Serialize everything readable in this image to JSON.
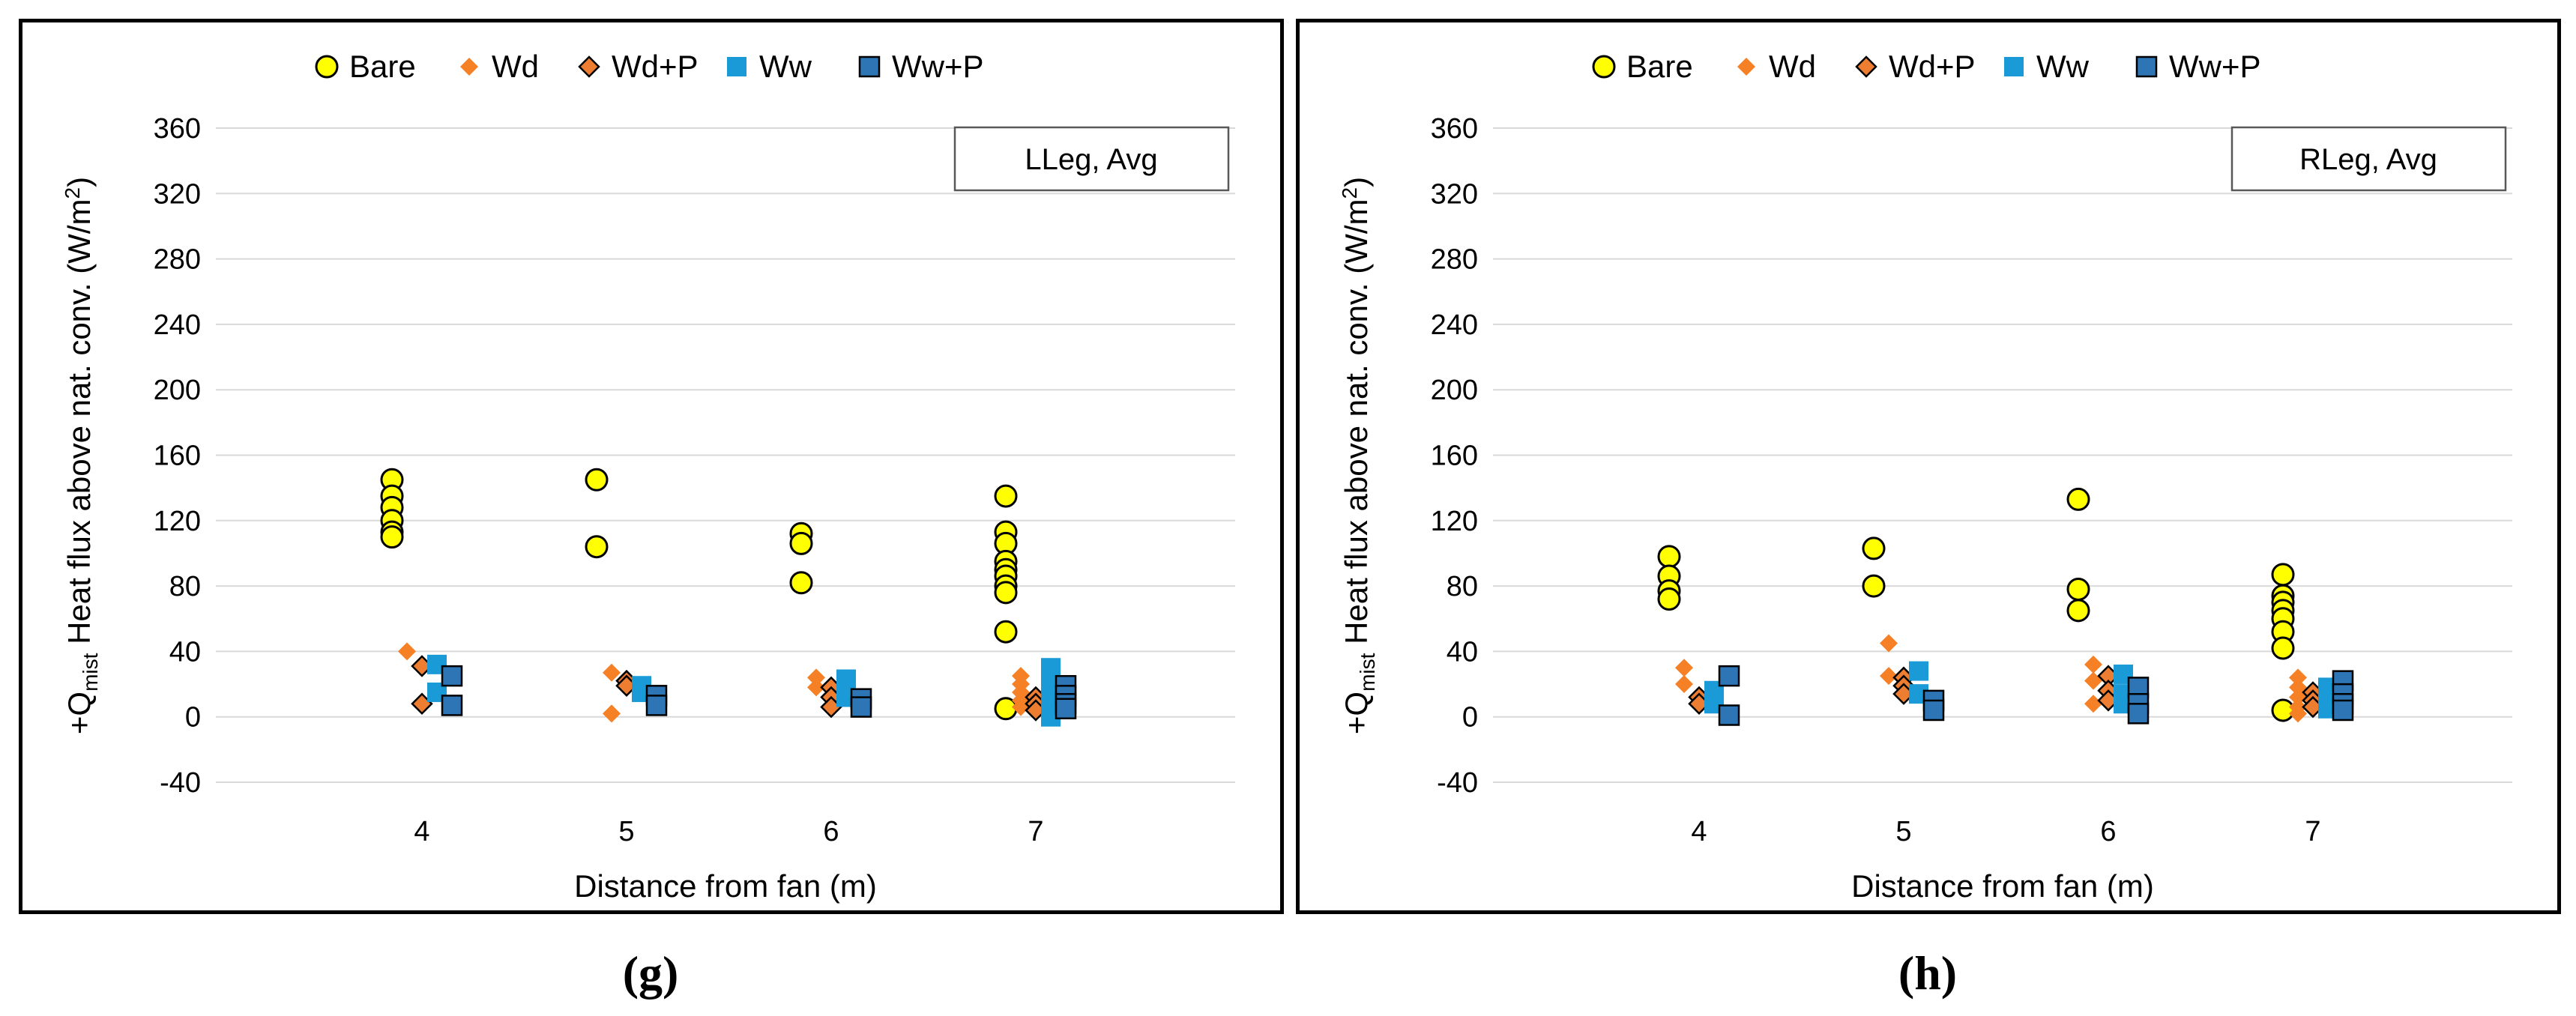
{
  "colors": {
    "Bare": "#ffff00",
    "Wd": "#f58025",
    "Wd+P": "#ed7d31",
    "Ww": "#1a9ad6",
    "Ww+P": "#2e75b6"
  },
  "chart_data": [
    {
      "type": "scatter",
      "panel_label": "(g)",
      "box_label": "LLeg, Avg",
      "xlabel": "Distance from fan (m)",
      "ylabel_prefix": "+Q",
      "ylabel_sub": "mist",
      "ylabel_main": " Heat flux above nat. conv. (W/m",
      "ylabel_sup": "2",
      "ylabel_end": ")",
      "ylim": [
        -40,
        360
      ],
      "yticks": [
        -40,
        0,
        40,
        80,
        120,
        160,
        200,
        240,
        280,
        320,
        360
      ],
      "categories": [
        "4",
        "5",
        "6",
        "7"
      ],
      "series": [
        {
          "name": "Bare",
          "points": [
            [
              4,
              145
            ],
            [
              4,
              135
            ],
            [
              4,
              128
            ],
            [
              4,
              120
            ],
            [
              4,
              113
            ],
            [
              4,
              110
            ],
            [
              5,
              145
            ],
            [
              5,
              104
            ],
            [
              6,
              112
            ],
            [
              6,
              106
            ],
            [
              6,
              82
            ],
            [
              7,
              135
            ],
            [
              7,
              113
            ],
            [
              7,
              106
            ],
            [
              7,
              95
            ],
            [
              7,
              90
            ],
            [
              7,
              86
            ],
            [
              7,
              80
            ],
            [
              7,
              76
            ],
            [
              7,
              52
            ],
            [
              7,
              5
            ]
          ]
        },
        {
          "name": "Wd",
          "points": [
            [
              4,
              40
            ],
            [
              5,
              27
            ],
            [
              5,
              2
            ],
            [
              6,
              24
            ],
            [
              6,
              18
            ],
            [
              7,
              25
            ],
            [
              7,
              20
            ],
            [
              7,
              15
            ],
            [
              7,
              10
            ],
            [
              7,
              6
            ]
          ]
        },
        {
          "name": "Wd+P",
          "points": [
            [
              4,
              31
            ],
            [
              4,
              8
            ],
            [
              5,
              22
            ],
            [
              5,
              19
            ],
            [
              6,
              18
            ],
            [
              6,
              12
            ],
            [
              6,
              6
            ],
            [
              7,
              12
            ],
            [
              7,
              8
            ],
            [
              7,
              4
            ]
          ]
        },
        {
          "name": "Ww",
          "points": [
            [
              4,
              32
            ],
            [
              4,
              15
            ],
            [
              5,
              19
            ],
            [
              5,
              15
            ],
            [
              6,
              23
            ],
            [
              6,
              16
            ],
            [
              6,
              12
            ],
            [
              7,
              30
            ],
            [
              7,
              22
            ],
            [
              7,
              16
            ],
            [
              7,
              10
            ],
            [
              7,
              5
            ],
            [
              7,
              0
            ]
          ]
        },
        {
          "name": "Ww+P",
          "points": [
            [
              4,
              25
            ],
            [
              4,
              7
            ],
            [
              5,
              13
            ],
            [
              5,
              7
            ],
            [
              6,
              11
            ],
            [
              6,
              6
            ],
            [
              7,
              19
            ],
            [
              7,
              13
            ],
            [
              7,
              8
            ],
            [
              7,
              5
            ]
          ]
        }
      ]
    },
    {
      "type": "scatter",
      "panel_label": "(h)",
      "box_label": "RLeg, Avg",
      "xlabel": "Distance from fan (m)",
      "ylabel_prefix": "+Q",
      "ylabel_sub": "mist",
      "ylabel_main": " Heat flux above nat. conv. (W/m",
      "ylabel_sup": "2",
      "ylabel_end": ")",
      "ylim": [
        -40,
        360
      ],
      "yticks": [
        -40,
        0,
        40,
        80,
        120,
        160,
        200,
        240,
        280,
        320,
        360
      ],
      "categories": [
        "4",
        "5",
        "6",
        "7"
      ],
      "series": [
        {
          "name": "Bare",
          "points": [
            [
              4,
              98
            ],
            [
              4,
              86
            ],
            [
              4,
              77
            ],
            [
              4,
              72
            ],
            [
              5,
              103
            ],
            [
              5,
              80
            ],
            [
              6,
              133
            ],
            [
              6,
              78
            ],
            [
              6,
              65
            ],
            [
              7,
              87
            ],
            [
              7,
              74
            ],
            [
              7,
              70
            ],
            [
              7,
              65
            ],
            [
              7,
              60
            ],
            [
              7,
              52
            ],
            [
              7,
              42
            ],
            [
              7,
              4
            ]
          ]
        },
        {
          "name": "Wd",
          "points": [
            [
              4,
              30
            ],
            [
              4,
              20
            ],
            [
              5,
              45
            ],
            [
              5,
              25
            ],
            [
              6,
              32
            ],
            [
              6,
              22
            ],
            [
              6,
              8
            ],
            [
              7,
              24
            ],
            [
              7,
              18
            ],
            [
              7,
              12
            ],
            [
              7,
              6
            ],
            [
              7,
              2
            ]
          ]
        },
        {
          "name": "Wd+P",
          "points": [
            [
              4,
              12
            ],
            [
              4,
              8
            ],
            [
              5,
              24
            ],
            [
              5,
              19
            ],
            [
              5,
              14
            ],
            [
              6,
              25
            ],
            [
              6,
              16
            ],
            [
              6,
              10
            ],
            [
              7,
              15
            ],
            [
              7,
              10
            ],
            [
              7,
              6
            ]
          ]
        },
        {
          "name": "Ww",
          "points": [
            [
              4,
              16
            ],
            [
              4,
              8
            ],
            [
              5,
              28
            ],
            [
              5,
              14
            ],
            [
              6,
              26
            ],
            [
              6,
              14
            ],
            [
              6,
              8
            ],
            [
              7,
              18
            ],
            [
              7,
              10
            ],
            [
              7,
              5
            ]
          ]
        },
        {
          "name": "Ww+P",
          "points": [
            [
              4,
              25
            ],
            [
              4,
              1
            ],
            [
              5,
              10
            ],
            [
              5,
              4
            ],
            [
              6,
              18
            ],
            [
              6,
              8
            ],
            [
              6,
              2
            ],
            [
              7,
              22
            ],
            [
              7,
              14
            ],
            [
              7,
              8
            ],
            [
              7,
              4
            ]
          ]
        }
      ]
    }
  ]
}
